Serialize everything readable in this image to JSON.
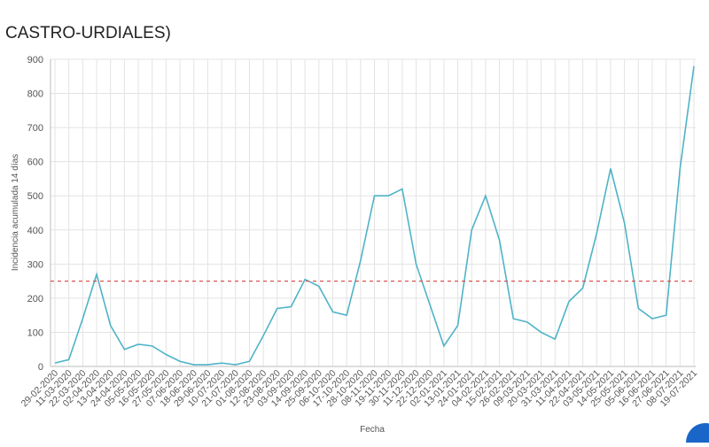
{
  "chart_data": {
    "type": "line",
    "title": "CASTRO-URDIALES)",
    "y_label": "Incidencia acumulada 14 días",
    "x_label": "Fecha",
    "categories": [
      "29-02-2020",
      "11-03-2020",
      "22-03-2020",
      "02-04-2020",
      "13-04-2020",
      "24-04-2020",
      "05-05-2020",
      "16-05-2020",
      "27-05-2020",
      "07-06-2020",
      "18-06-2020",
      "29-06-2020",
      "10-07-2020",
      "21-07-2020",
      "01-08-2020",
      "12-08-2020",
      "23-08-2020",
      "03-09-2020",
      "14-09-2020",
      "25-09-2020",
      "06-10-2020",
      "17-10-2020",
      "28-10-2020",
      "08-11-2020",
      "19-11-2020",
      "30-11-2020",
      "11-12-2020",
      "22-12-2020",
      "02-01-2021",
      "13-01-2021",
      "24-01-2021",
      "04-02-2021",
      "15-02-2021",
      "26-02-2021",
      "09-03-2021",
      "20-03-2021",
      "31-03-2021",
      "11-04-2021",
      "22-04-2021",
      "03-05-2021",
      "14-05-2021",
      "25-05-2021",
      "05-06-2021",
      "16-06-2021",
      "27-06-2021",
      "08-07-2021",
      "19-07-2021"
    ],
    "values": [
      10,
      20,
      140,
      270,
      120,
      50,
      65,
      60,
      35,
      15,
      5,
      5,
      10,
      5,
      15,
      90,
      170,
      175,
      255,
      235,
      160,
      150,
      310,
      500,
      500,
      520,
      300,
      180,
      60,
      120,
      400,
      500,
      370,
      140,
      130,
      100,
      80,
      190,
      230,
      390,
      580,
      420,
      170,
      140,
      150,
      580,
      880
    ],
    "color": "#4fb3c7",
    "threshold": 250,
    "threshold_color": "#d9534f",
    "ylim": [
      0,
      900
    ],
    "yticks": [
      0,
      100,
      200,
      300,
      400,
      500,
      600,
      700,
      800,
      900
    ],
    "grid": true
  }
}
